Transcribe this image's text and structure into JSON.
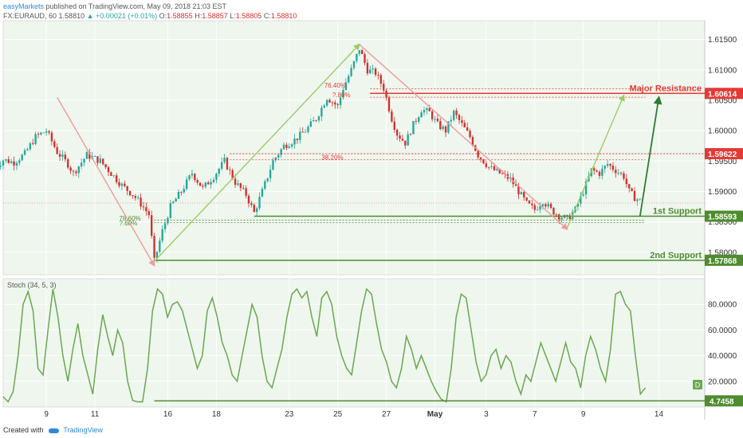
{
  "header": {
    "publisher": "easyMarkets",
    "published_text": "published on TradingView.com, May 09, 2018 21:03 EST",
    "symbol": "FX:EURAUD, 60",
    "last": "1.58810",
    "change_arrow": "▲",
    "change": "+0.00021 (+0.01%)",
    "o_label": "O:",
    "o_value": "1.58855",
    "h_label": "H:",
    "h_value": "1.58857",
    "l_label": "L:",
    "l_value": "1.58805",
    "c_label": "C:",
    "c_value": "1.58810"
  },
  "footer": {
    "created_with": "Created with",
    "brand": "TradingView",
    "logo_icon": "tradingview-cloud-icon"
  },
  "colors": {
    "up": "#26a69a",
    "down": "#d0312d",
    "resistance": "#e53935",
    "support": "#4e8c2f",
    "stoch": "#6aa84f",
    "fib": "#ef9a9a",
    "projection": "#9ccc65",
    "arrow_dark": "#2e7d32"
  },
  "chart_data": [
    {
      "type": "candlestick",
      "symbol": "FX:EURAUD",
      "timeframe": "60",
      "x_ticks": [
        "9",
        "11",
        "16",
        "18",
        "23",
        "25",
        "27",
        "May",
        "3",
        "7",
        "9",
        "14"
      ],
      "y_ticks": [
        "1.61500",
        "1.61000",
        "1.60500",
        "1.60000",
        "1.59500",
        "1.59000",
        "1.58500",
        "1.58000"
      ],
      "ylim": [
        1.5763,
        1.6181
      ],
      "path_points": [
        [
          0,
          1.5935
        ],
        [
          4,
          1.5952
        ],
        [
          8,
          1.5948
        ],
        [
          12,
          1.5962
        ],
        [
          16,
          1.599
        ],
        [
          20,
          1.6
        ],
        [
          24,
          1.5965
        ],
        [
          28,
          1.5945
        ],
        [
          30,
          1.593
        ],
        [
          35,
          1.596
        ],
        [
          40,
          1.595
        ],
        [
          44,
          1.593
        ],
        [
          48,
          1.591
        ],
        [
          52,
          1.5895
        ],
        [
          55,
          1.588
        ],
        [
          58,
          1.5862
        ],
        [
          60,
          1.5785
        ],
        [
          63,
          1.5835
        ],
        [
          66,
          1.5875
        ],
        [
          70,
          1.59
        ],
        [
          74,
          1.593
        ],
        [
          78,
          1.5905
        ],
        [
          82,
          1.5925
        ],
        [
          86,
          1.595
        ],
        [
          90,
          1.5915
        ],
        [
          92,
          1.5905
        ],
        [
          94,
          1.5895
        ],
        [
          97,
          1.5865
        ],
        [
          100,
          1.59
        ],
        [
          104,
          1.595
        ],
        [
          108,
          1.5975
        ],
        [
          112,
          1.5985
        ],
        [
          116,
          1.6
        ],
        [
          120,
          1.602
        ],
        [
          124,
          1.6055
        ],
        [
          128,
          1.604
        ],
        [
          130,
          1.607
        ],
        [
          133,
          1.61
        ],
        [
          136,
          1.6135
        ],
        [
          139,
          1.61
        ],
        [
          142,
          1.6095
        ],
        [
          145,
          1.607
        ],
        [
          148,
          1.602
        ],
        [
          150,
          1.5995
        ],
        [
          153,
          1.598
        ],
        [
          156,
          1.601
        ],
        [
          159,
          1.6035
        ],
        [
          162,
          1.603
        ],
        [
          165,
          1.601
        ],
        [
          168,
          1.6
        ],
        [
          171,
          1.603
        ],
        [
          174,
          1.601
        ],
        [
          177,
          1.599
        ],
        [
          180,
          1.596
        ],
        [
          184,
          1.594
        ],
        [
          188,
          1.593
        ],
        [
          192,
          1.592
        ],
        [
          195,
          1.59
        ],
        [
          198,
          1.588
        ],
        [
          201,
          1.587
        ],
        [
          204,
          1.5885
        ],
        [
          207,
          1.587
        ],
        [
          210,
          1.586
        ],
        [
          213,
          1.5855
        ],
        [
          216,
          1.587
        ],
        [
          219,
          1.59
        ],
        [
          222,
          1.5935
        ],
        [
          225,
          1.593
        ],
        [
          228,
          1.5945
        ],
        [
          231,
          1.5935
        ],
        [
          234,
          1.5925
        ],
        [
          236,
          1.59
        ],
        [
          238,
          1.589
        ],
        [
          240,
          1.5885
        ]
      ],
      "candle_count": 240,
      "annotations": [
        {
          "label": "Major Resistance",
          "price_label": "1.60614",
          "value": 1.60614,
          "x_start": 140,
          "x_end": 255
        },
        {
          "label": "",
          "price_label": "1.59622",
          "value": 1.59622,
          "x_start": 88,
          "x_end": 255
        },
        {
          "label": "1st Support",
          "price_label": "1.58593",
          "value": 1.58593,
          "x_start": 97,
          "x_end": 255
        },
        {
          "label": "2nd Support",
          "price_label": "1.57868",
          "value": 1.57868,
          "x_start": 60,
          "x_end": 255
        }
      ],
      "fib_labels": [
        {
          "text": "76.40%",
          "x": 123,
          "y": 1.6075
        },
        {
          "text": "?.80%",
          "x": 126,
          "y": 1.6059
        },
        {
          "text": "38.20%",
          "x": 122,
          "y": 1.5956
        },
        {
          "text": "78.60%",
          "x": 47,
          "y": 1.5856
        },
        {
          "text": "?.60%",
          "x": 47,
          "y": 1.5848
        }
      ],
      "fib_lines": [
        {
          "value": 1.6069,
          "x_start": 140,
          "x_end": 242
        },
        {
          "value": 1.6055,
          "x_start": 140,
          "x_end": 242
        },
        {
          "value": 1.5952,
          "x_start": 88,
          "x_end": 242
        },
        {
          "value": 1.5853,
          "x_start": 60,
          "x_end": 242
        },
        {
          "value": 1.5849,
          "x_start": 60,
          "x_end": 242
        }
      ],
      "trend_arrows": [
        {
          "from": [
            24,
            1.6055
          ],
          "to": [
            60,
            1.5778
          ],
          "color": "fib"
        },
        {
          "from": [
            60,
            1.5785
          ],
          "to": [
            136,
            1.6142
          ],
          "color": "projection"
        },
        {
          "from": [
            136,
            1.6142
          ],
          "to": [
            213,
            1.5838
          ],
          "color": "fib"
        },
        {
          "from": [
            213,
            1.584
          ],
          "to": [
            234,
            1.6058
          ],
          "color": "projection"
        },
        {
          "from": [
            240,
            1.5859
          ],
          "to": [
            247,
            1.6055
          ],
          "color": "arrow_dark"
        }
      ],
      "current_price": 1.5881
    },
    {
      "type": "line",
      "title": "Stoch (34, 5, 3)",
      "x_ticks": [
        "9",
        "11",
        "16",
        "18",
        "23",
        "25",
        "27",
        "May",
        "3",
        "7",
        "9",
        "14"
      ],
      "y_ticks": [
        "80.0000",
        "60.0000",
        "40.0000",
        "20.0000"
      ],
      "ylim": [
        0,
        100
      ],
      "series": [
        {
          "name": "",
          "values": [
            8,
            4,
            12,
            40,
            80,
            90,
            75,
            30,
            25,
            60,
            92,
            70,
            40,
            20,
            45,
            65,
            40,
            25,
            10,
            45,
            72,
            55,
            40,
            60,
            50,
            20,
            5,
            4,
            4,
            30,
            75,
            92,
            88,
            70,
            80,
            82,
            75,
            60,
            45,
            30,
            40,
            75,
            85,
            70,
            50,
            40,
            25,
            20,
            40,
            60,
            80,
            70,
            40,
            20,
            15,
            30,
            45,
            70,
            88,
            92,
            85,
            90,
            70,
            55,
            85,
            90,
            80,
            55,
            40,
            30,
            25,
            50,
            75,
            92,
            88,
            65,
            45,
            35,
            20,
            15,
            30,
            55,
            45,
            30,
            40,
            30,
            20,
            12,
            6,
            4,
            30,
            70,
            88,
            85,
            60,
            35,
            20,
            25,
            40,
            45,
            30,
            40,
            35,
            20,
            10,
            25,
            20,
            35,
            50,
            40,
            30,
            20,
            35,
            50,
            35,
            30,
            15,
            40,
            55,
            45,
            30,
            20,
            45,
            88,
            90,
            80,
            75,
            40,
            10,
            15
          ],
          "values_note": ""
        }
      ],
      "annotations": [
        {
          "label": "D",
          "type": "badge"
        },
        {
          "price_label": "4.7458",
          "value": 4.7458
        }
      ]
    }
  ]
}
